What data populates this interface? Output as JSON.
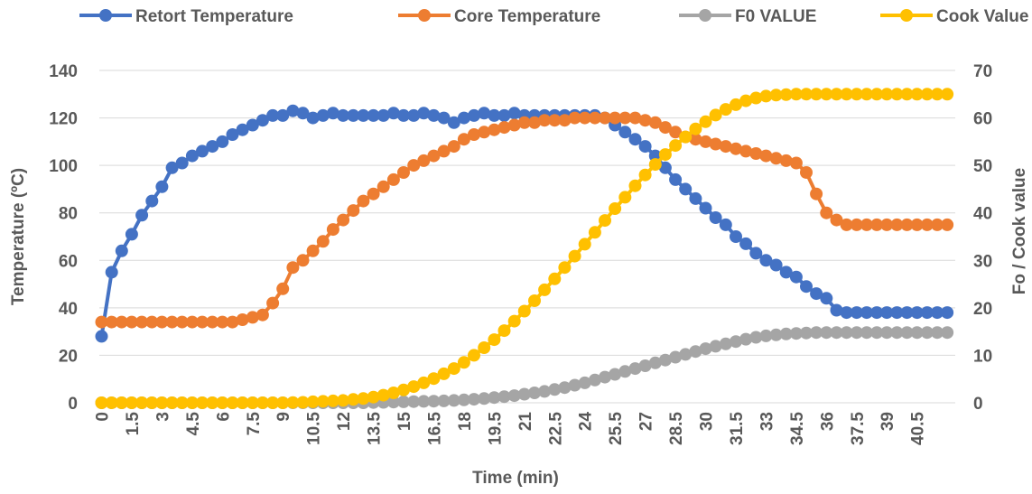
{
  "chart_data": {
    "type": "line",
    "xlabel": "Time (min)",
    "ylabel_left": "Temperature (ºC)",
    "ylabel_right": "Fo / Cook value",
    "legend_position": "top",
    "grid": true,
    "x_step_min": 0.5,
    "x_count": 85,
    "x_tick_labels": [
      "0",
      "1.5",
      "3",
      "4.5",
      "6",
      "7.5",
      "9",
      "10.5",
      "12",
      "13.5",
      "15",
      "16.5",
      "18",
      "19.5",
      "21",
      "22.5",
      "24",
      "25.5",
      "27",
      "28.5",
      "30",
      "31.5",
      "33",
      "34.5",
      "36",
      "37.5",
      "39",
      "40.5"
    ],
    "y_left": {
      "min": 0,
      "max": 140,
      "ticks": [
        0,
        20,
        40,
        60,
        80,
        100,
        120,
        140
      ]
    },
    "y_right": {
      "min": 0,
      "max": 70,
      "ticks": [
        0,
        10,
        20,
        30,
        40,
        50,
        60,
        70
      ]
    },
    "series": [
      {
        "name": "Retort Temperature",
        "color": "#4472C4",
        "axis": "left",
        "values": [
          28,
          55,
          64,
          71,
          79,
          85,
          91,
          99,
          101,
          104,
          106,
          108,
          110,
          113,
          115,
          117,
          119,
          121,
          121,
          123,
          122,
          120,
          121,
          122,
          121,
          121,
          121,
          121,
          121,
          122,
          121,
          121,
          122,
          121,
          120,
          118,
          120,
          121,
          122,
          121,
          121,
          122,
          121,
          121,
          121,
          121,
          121,
          121,
          121,
          121,
          120,
          117,
          114,
          111,
          108,
          104,
          99,
          94,
          90,
          86,
          82,
          78,
          75,
          70,
          67,
          63,
          60,
          58,
          55,
          53,
          49,
          46,
          44,
          39,
          38,
          38,
          38,
          38,
          38,
          38,
          38,
          38,
          38,
          38,
          38
        ]
      },
      {
        "name": "Core Temperature",
        "color": "#ED7D31",
        "axis": "left",
        "values": [
          34,
          34,
          34,
          34,
          34,
          34,
          34,
          34,
          34,
          34,
          34,
          34,
          34,
          34,
          35,
          36,
          37,
          42,
          48,
          57,
          60,
          64,
          68,
          73,
          77,
          81,
          85,
          88,
          91,
          94,
          97,
          100,
          102,
          104,
          106,
          108,
          111,
          113,
          114,
          115,
          116,
          117,
          118,
          118,
          119,
          119,
          119,
          120,
          120,
          120,
          120,
          120,
          120,
          120,
          119,
          118,
          116,
          114,
          112,
          111,
          110,
          109,
          108,
          107,
          106,
          105,
          104,
          103,
          102,
          101,
          97,
          88,
          80,
          77,
          75,
          75,
          75,
          75,
          75,
          75,
          75,
          75,
          75,
          75,
          75
        ]
      },
      {
        "name": "F0 VALUE",
        "color": "#A5A5A5",
        "axis": "right",
        "values": [
          0,
          0,
          0,
          0,
          0,
          0,
          0,
          0,
          0,
          0,
          0,
          0,
          0,
          0,
          0,
          0,
          0,
          0,
          0,
          0,
          0,
          0,
          0,
          0,
          0,
          0,
          0,
          0.05,
          0.1,
          0.15,
          0.2,
          0.25,
          0.3,
          0.35,
          0.4,
          0.5,
          0.6,
          0.75,
          0.9,
          1.1,
          1.3,
          1.5,
          1.8,
          2.1,
          2.4,
          2.8,
          3.2,
          3.7,
          4.2,
          4.8,
          5.4,
          6,
          6.6,
          7.2,
          7.8,
          8.4,
          9,
          9.6,
          10.2,
          10.8,
          11.4,
          11.9,
          12.4,
          12.9,
          13.4,
          13.8,
          14.1,
          14.3,
          14.5,
          14.6,
          14.7,
          14.8,
          14.8,
          14.8,
          14.8,
          14.8,
          14.8,
          14.8,
          14.8,
          14.8,
          14.8,
          14.8,
          14.8,
          14.8,
          14.8
        ]
      },
      {
        "name": "Cook Value",
        "color": "#FFC000",
        "axis": "right",
        "values": [
          0,
          0,
          0,
          0,
          0,
          0,
          0,
          0,
          0,
          0,
          0,
          0,
          0,
          0,
          0,
          0,
          0,
          0,
          0,
          0.05,
          0.1,
          0.2,
          0.3,
          0.4,
          0.5,
          0.7,
          0.9,
          1.2,
          1.6,
          2.1,
          2.7,
          3.4,
          4.2,
          5.1,
          6.1,
          7.2,
          8.5,
          10,
          11.6,
          13.3,
          15.2,
          17.2,
          19.3,
          21.5,
          23.8,
          26.1,
          28.5,
          30.9,
          33.4,
          35.9,
          38.4,
          40.9,
          43.3,
          45.7,
          48,
          50.2,
          52.3,
          54.2,
          56,
          57.7,
          59.2,
          60.6,
          61.8,
          62.8,
          63.6,
          64.2,
          64.6,
          64.8,
          64.9,
          65,
          65,
          65,
          65,
          65,
          65,
          65,
          65,
          65,
          65,
          65,
          65,
          65,
          65,
          65,
          65
        ]
      }
    ]
  }
}
